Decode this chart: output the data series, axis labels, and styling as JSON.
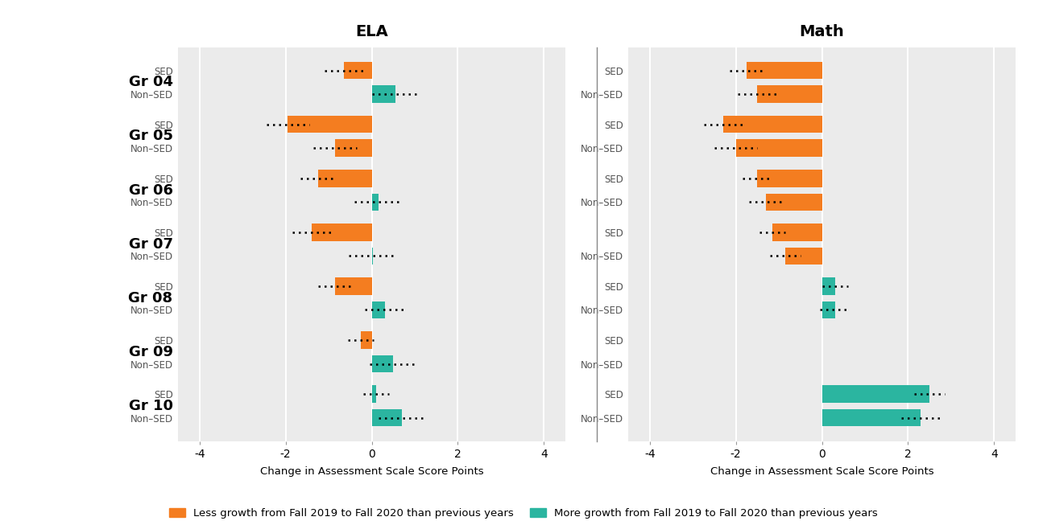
{
  "title_ela": "ELA",
  "title_math": "Math",
  "xlabel": "Change in Assessment Scale Score Points",
  "grades": [
    "Gr 04",
    "Gr 05",
    "Gr 06",
    "Gr 07",
    "Gr 08",
    "Gr 09",
    "Gr 10"
  ],
  "orange_color": "#F47D20",
  "teal_color": "#2BB5A0",
  "background_color": "#EBEBEB",
  "ela_data": {
    "SED_bar": [
      -0.65,
      -1.95,
      -1.25,
      -1.4,
      -0.85,
      -0.25,
      0.1
    ],
    "SED_err_lo": [
      0.45,
      0.5,
      0.4,
      0.45,
      0.4,
      0.3,
      0.3
    ],
    "SED_err_hi": [
      0.45,
      0.5,
      0.4,
      0.45,
      0.4,
      0.3,
      0.3
    ],
    "NonSED_bar": [
      0.55,
      -0.85,
      0.15,
      0.02,
      0.3,
      0.5,
      0.7
    ],
    "NonSED_err_lo": [
      0.55,
      0.5,
      0.55,
      0.55,
      0.45,
      0.55,
      0.55
    ],
    "NonSED_err_hi": [
      0.55,
      0.5,
      0.55,
      0.55,
      0.45,
      0.55,
      0.55
    ]
  },
  "math_data": {
    "SED_bar": [
      -1.75,
      -2.3,
      -1.5,
      -1.15,
      0.3,
      0.0,
      2.5
    ],
    "SED_err_lo": [
      0.4,
      0.45,
      0.35,
      0.3,
      0.3,
      0.0,
      0.35
    ],
    "SED_err_hi": [
      0.4,
      0.45,
      0.35,
      0.3,
      0.3,
      0.0,
      0.35
    ],
    "NonSED_bar": [
      -1.5,
      -2.0,
      -1.3,
      -0.85,
      0.3,
      0.0,
      2.3
    ],
    "NonSED_err_lo": [
      0.45,
      0.5,
      0.4,
      0.35,
      0.35,
      0.0,
      0.45
    ],
    "NonSED_err_hi": [
      0.45,
      0.5,
      0.4,
      0.35,
      0.35,
      0.0,
      0.45
    ]
  },
  "xlim": [
    -4.5,
    4.5
  ],
  "xticks": [
    -4,
    -2,
    0,
    2,
    4
  ],
  "legend_orange": "Less growth from Fall 2019 to Fall 2020 than previous years",
  "legend_teal": "More growth from Fall 2019 to Fall 2020 than previous years"
}
